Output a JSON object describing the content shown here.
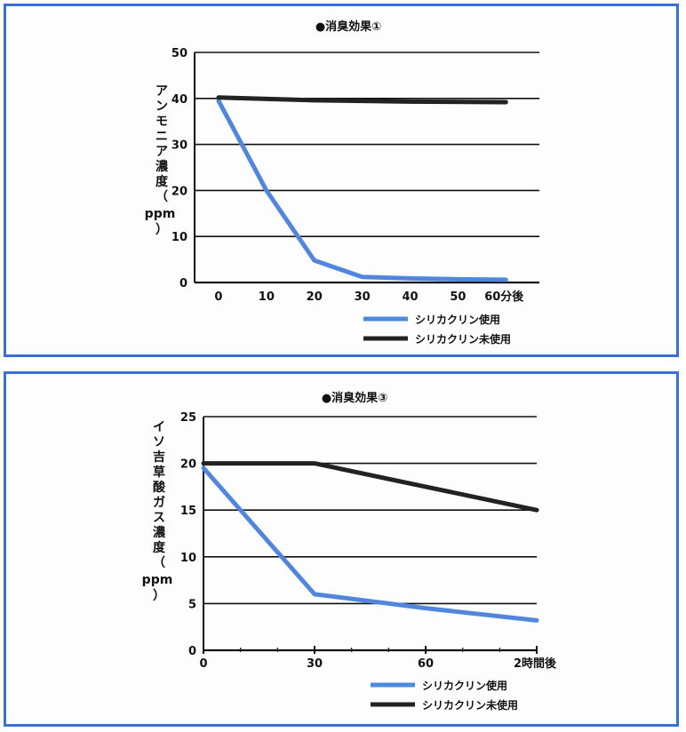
{
  "chart_data": [
    {
      "type": "line",
      "title": "●消臭効果①",
      "ylabel_vertical": "アンモニア濃度（",
      "ylabel_unit": "ppm",
      "ylabel_close": "）",
      "x": [
        0,
        10,
        20,
        30,
        40,
        50,
        60
      ],
      "xtick_labels": [
        "0",
        "10",
        "20",
        "30",
        "40",
        "50",
        "60分後"
      ],
      "yticks": [
        0,
        10,
        20,
        30,
        40,
        50
      ],
      "ylim": [
        0,
        50
      ],
      "xlim": [
        -5,
        67
      ],
      "grid": true,
      "legend_position": "bottom-right",
      "series": [
        {
          "name": "シリカクリン使用",
          "color": "#4a8be0",
          "points": [
            [
              0,
              39.5
            ],
            [
              10,
              20
            ],
            [
              20,
              4.8
            ],
            [
              30,
              1.2
            ],
            [
              40,
              0.9
            ],
            [
              50,
              0.7
            ],
            [
              60,
              0.6
            ]
          ]
        },
        {
          "name": "シリカクリン未使用",
          "color": "#222222",
          "points": [
            [
              0,
              40.2
            ],
            [
              20,
              39.6
            ],
            [
              40,
              39.3
            ],
            [
              60,
              39.2
            ]
          ]
        }
      ]
    },
    {
      "type": "line",
      "title": "●消臭効果③",
      "ylabel_vertical": "イソ吉草酸ガス濃度（",
      "ylabel_unit": "ppm",
      "ylabel_close": "）",
      "x": [
        0,
        30,
        60,
        90
      ],
      "xtick_labels": [
        "0",
        "30",
        "60",
        "2時間後"
      ],
      "yticks": [
        0,
        5,
        10,
        15,
        20,
        25
      ],
      "ylim": [
        0,
        25
      ],
      "xlim": [
        0,
        90
      ],
      "grid": true,
      "legend_position": "bottom-right",
      "series": [
        {
          "name": "シリカクリン使用",
          "color": "#4a8be0",
          "points": [
            [
              0,
              19.5
            ],
            [
              30,
              6
            ],
            [
              60,
              4.5
            ],
            [
              90,
              3.2
            ]
          ]
        },
        {
          "name": "シリカクリン未使用",
          "color": "#222222",
          "points": [
            [
              0,
              20
            ],
            [
              30,
              20
            ],
            [
              60,
              17.5
            ],
            [
              90,
              15
            ]
          ]
        }
      ]
    }
  ]
}
